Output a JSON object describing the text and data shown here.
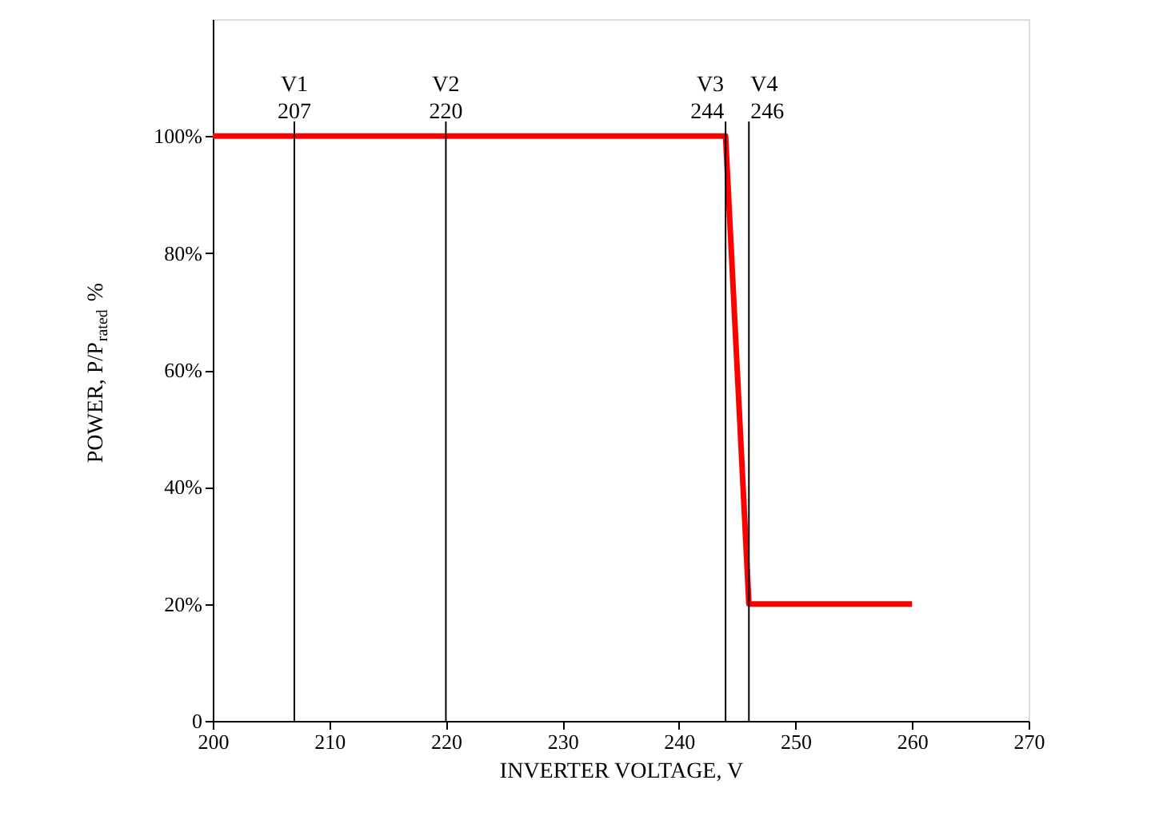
{
  "chart_data": {
    "type": "line",
    "xlabel": "INVERTER VOLTAGE, V",
    "ylabel": "POWER, P/P$_{rated}$ %",
    "x": [
      200,
      244,
      246,
      260
    ],
    "series": [
      {
        "color": "#ff0000",
        "values": [
          100,
          100,
          20,
          20
        ]
      }
    ],
    "xlim": [
      200,
      270
    ],
    "xticks": [
      200,
      210,
      220,
      230,
      240,
      250,
      260,
      270
    ],
    "ylim": [
      0,
      120
    ],
    "yticks": [
      0,
      {
        "value": 20,
        "label": "20%"
      },
      {
        "value": 40,
        "label": "40%"
      },
      {
        "value": 60,
        "label": "60%"
      },
      {
        "value": 80,
        "label": "80%"
      },
      {
        "value": 100,
        "label": "100%"
      }
    ],
    "ref_lines": [
      {
        "axis": "x",
        "value": 207,
        "label": "V1 207",
        "color": "#000000"
      },
      {
        "axis": "x",
        "value": 220,
        "label": "V2 220",
        "color": "#000000"
      },
      {
        "axis": "x",
        "value": 244,
        "label": "V3 244",
        "color": "#000000"
      },
      {
        "axis": "x",
        "value": 246,
        "label": "V4 246",
        "color": "#000000"
      }
    ],
    "grid": false,
    "marker": "none",
    "line_style": "solid"
  }
}
